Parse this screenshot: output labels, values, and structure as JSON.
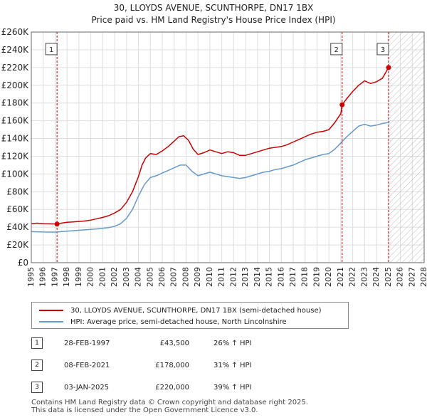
{
  "title_line1": "30, LLOYDS AVENUE, SCUNTHORPE, DN17 1BX",
  "title_line2": "Price paid vs. HM Land Registry's House Price Index (HPI)",
  "chart_data": {
    "type": "line",
    "xlim": [
      1995,
      2028
    ],
    "ylim": [
      0,
      260000
    ],
    "y_ticks": [
      0,
      20000,
      40000,
      60000,
      80000,
      100000,
      120000,
      140000,
      160000,
      180000,
      200000,
      220000,
      240000,
      260000
    ],
    "y_tick_labels": [
      "£0",
      "£20K",
      "£40K",
      "£60K",
      "£80K",
      "£100K",
      "£120K",
      "£140K",
      "£160K",
      "£180K",
      "£200K",
      "£220K",
      "£240K",
      "£260K"
    ],
    "x_ticks": [
      1995,
      1996,
      1997,
      1998,
      1999,
      2000,
      2001,
      2002,
      2003,
      2004,
      2005,
      2006,
      2007,
      2008,
      2009,
      2010,
      2011,
      2012,
      2013,
      2014,
      2015,
      2016,
      2017,
      2018,
      2019,
      2020,
      2021,
      2022,
      2023,
      2024,
      2025,
      2026,
      2027,
      2028
    ],
    "x_tick_labels": [
      "1995",
      "1996",
      "1997",
      "1998",
      "1999",
      "2000",
      "2001",
      "2002",
      "2003",
      "2004",
      "2005",
      "2006",
      "2007",
      "2008",
      "2009",
      "2010",
      "2011",
      "2012",
      "2013",
      "2014",
      "2015",
      "2016",
      "2017",
      "2018",
      "2019",
      "2020",
      "2021",
      "2022",
      "2023",
      "2024",
      "2025",
      "2026",
      "2027",
      "2028"
    ],
    "grid": true,
    "hatched_future_from": 2025.0,
    "series": [
      {
        "name": "30, LLOYDS AVENUE, SCUNTHORPE, DN17 1BX (semi-detached house)",
        "color": "#cc0000",
        "points": [
          [
            1995.0,
            44000
          ],
          [
            1995.5,
            44500
          ],
          [
            1996.0,
            44000
          ],
          [
            1996.5,
            43800
          ],
          [
            1997.16,
            43500
          ],
          [
            1997.5,
            44500
          ],
          [
            1998.0,
            45500
          ],
          [
            1998.5,
            46000
          ],
          [
            1999.0,
            46500
          ],
          [
            1999.5,
            47000
          ],
          [
            2000.0,
            48000
          ],
          [
            2000.5,
            49500
          ],
          [
            2001.0,
            51000
          ],
          [
            2001.5,
            53000
          ],
          [
            2002.0,
            56000
          ],
          [
            2002.5,
            60000
          ],
          [
            2003.0,
            68000
          ],
          [
            2003.5,
            80000
          ],
          [
            2004.0,
            97000
          ],
          [
            2004.3,
            110000
          ],
          [
            2004.6,
            118000
          ],
          [
            2005.0,
            123000
          ],
          [
            2005.5,
            122000
          ],
          [
            2006.0,
            126000
          ],
          [
            2006.5,
            131000
          ],
          [
            2007.0,
            137000
          ],
          [
            2007.4,
            142000
          ],
          [
            2007.8,
            143000
          ],
          [
            2008.2,
            138000
          ],
          [
            2008.6,
            128000
          ],
          [
            2009.0,
            122000
          ],
          [
            2009.5,
            124000
          ],
          [
            2010.0,
            127000
          ],
          [
            2010.5,
            125000
          ],
          [
            2011.0,
            123000
          ],
          [
            2011.5,
            125000
          ],
          [
            2012.0,
            124000
          ],
          [
            2012.5,
            121000
          ],
          [
            2013.0,
            121000
          ],
          [
            2013.5,
            123000
          ],
          [
            2014.0,
            125000
          ],
          [
            2014.5,
            127000
          ],
          [
            2015.0,
            129000
          ],
          [
            2015.5,
            130000
          ],
          [
            2016.0,
            131000
          ],
          [
            2016.5,
            133000
          ],
          [
            2017.0,
            136000
          ],
          [
            2017.5,
            139000
          ],
          [
            2018.0,
            142000
          ],
          [
            2018.5,
            145000
          ],
          [
            2019.0,
            147000
          ],
          [
            2019.5,
            148000
          ],
          [
            2020.0,
            150000
          ],
          [
            2020.5,
            158000
          ],
          [
            2021.0,
            168000
          ],
          [
            2021.11,
            178000
          ],
          [
            2021.5,
            185000
          ],
          [
            2022.0,
            193000
          ],
          [
            2022.5,
            200000
          ],
          [
            2023.0,
            205000
          ],
          [
            2023.5,
            202000
          ],
          [
            2024.0,
            204000
          ],
          [
            2024.5,
            208000
          ],
          [
            2025.01,
            220000
          ],
          [
            2025.1,
            222000
          ]
        ]
      },
      {
        "name": "HPI: Average price, semi-detached house, North Lincolnshire",
        "color": "#6699cc",
        "points": [
          [
            1995.0,
            35000
          ],
          [
            1995.5,
            34800
          ],
          [
            1996.0,
            34600
          ],
          [
            1996.5,
            34500
          ],
          [
            1997.16,
            34500
          ],
          [
            1997.5,
            35000
          ],
          [
            1998.0,
            35500
          ],
          [
            1998.5,
            36000
          ],
          [
            1999.0,
            36500
          ],
          [
            1999.5,
            37000
          ],
          [
            2000.0,
            37500
          ],
          [
            2000.5,
            38000
          ],
          [
            2001.0,
            38800
          ],
          [
            2001.5,
            39500
          ],
          [
            2002.0,
            41000
          ],
          [
            2002.5,
            44000
          ],
          [
            2003.0,
            50000
          ],
          [
            2003.5,
            60000
          ],
          [
            2004.0,
            75000
          ],
          [
            2004.5,
            88000
          ],
          [
            2005.0,
            96000
          ],
          [
            2005.5,
            98000
          ],
          [
            2006.0,
            101000
          ],
          [
            2006.5,
            104000
          ],
          [
            2007.0,
            107000
          ],
          [
            2007.5,
            110000
          ],
          [
            2008.0,
            110000
          ],
          [
            2008.5,
            103000
          ],
          [
            2009.0,
            98000
          ],
          [
            2009.5,
            100000
          ],
          [
            2010.0,
            102000
          ],
          [
            2010.5,
            100000
          ],
          [
            2011.0,
            98000
          ],
          [
            2011.5,
            97000
          ],
          [
            2012.0,
            96000
          ],
          [
            2012.5,
            95000
          ],
          [
            2013.0,
            96000
          ],
          [
            2013.5,
            98000
          ],
          [
            2014.0,
            100000
          ],
          [
            2014.5,
            102000
          ],
          [
            2015.0,
            103000
          ],
          [
            2015.5,
            105000
          ],
          [
            2016.0,
            106000
          ],
          [
            2016.5,
            108000
          ],
          [
            2017.0,
            110000
          ],
          [
            2017.5,
            113000
          ],
          [
            2018.0,
            116000
          ],
          [
            2018.5,
            118000
          ],
          [
            2019.0,
            120000
          ],
          [
            2019.5,
            122000
          ],
          [
            2020.0,
            123000
          ],
          [
            2020.5,
            128000
          ],
          [
            2021.0,
            135000
          ],
          [
            2021.5,
            142000
          ],
          [
            2022.0,
            148000
          ],
          [
            2022.5,
            154000
          ],
          [
            2023.0,
            156000
          ],
          [
            2023.5,
            154000
          ],
          [
            2024.0,
            155000
          ],
          [
            2024.5,
            157000
          ],
          [
            2025.0,
            158000
          ],
          [
            2025.1,
            159000
          ]
        ]
      }
    ],
    "sales": [
      {
        "marker": "1",
        "x": 1997.16,
        "price": 43500,
        "date": "28-FEB-1997",
        "price_label": "£43,500",
        "hpi_label": "26% ↑ HPI"
      },
      {
        "marker": "2",
        "x": 2021.11,
        "price": 178000,
        "date": "08-FEB-2021",
        "price_label": "£178,000",
        "hpi_label": "31% ↑ HPI"
      },
      {
        "marker": "3",
        "x": 2025.01,
        "price": 220000,
        "date": "03-JAN-2025",
        "price_label": "£220,000",
        "hpi_label": "39% ↑ HPI"
      }
    ]
  },
  "legend": {
    "item1": "30, LLOYDS AVENUE, SCUNTHORPE, DN17 1BX (semi-detached house)",
    "item2": "HPI: Average price, semi-detached house, North Lincolnshire"
  },
  "footer": {
    "line1": "Contains HM Land Registry data © Crown copyright and database right 2025.",
    "line2": "This data is licensed under the Open Government Licence v3.0."
  }
}
